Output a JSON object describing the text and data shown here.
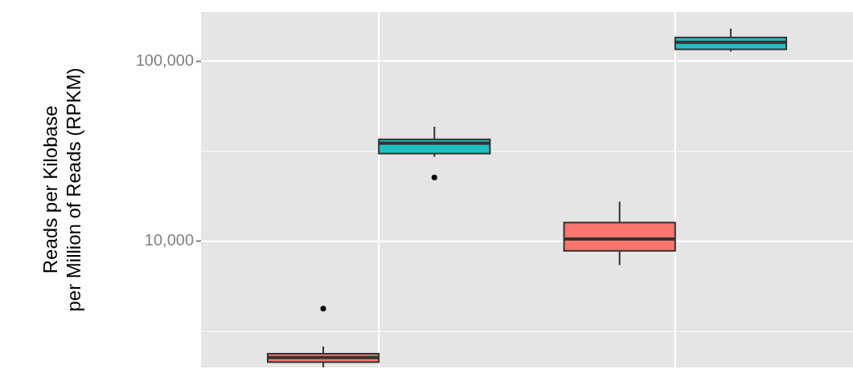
{
  "chart_data": {
    "type": "box",
    "ylabel": "Reads per Kilobase\nper Million of Reads (RPKM)",
    "categories": [
      null,
      null
    ],
    "log": "y",
    "grid": true,
    "legend": false,
    "tick_labels": "y",
    "ylim": [
      2000,
      187000
    ],
    "yticks": [
      {
        "value": 3162,
        "label": null
      },
      {
        "value": 10000,
        "label": "10,000"
      },
      {
        "value": 31623,
        "label": null
      },
      {
        "value": 100000,
        "label": "100,000"
      }
    ],
    "series": [
      {
        "color": "#f8766d",
        "boxes": [
          {
            "low": 2000,
            "q1": 2135,
            "median": 2265,
            "q3": 2380,
            "high": 2610,
            "outliers": [
              4240
            ]
          },
          {
            "low": 7380,
            "q1": 8860,
            "median": 10300,
            "q3": 12700,
            "high": 16600
          }
        ]
      },
      {
        "color": "#1fbfc4",
        "boxes": [
          {
            "low": 29400,
            "q1": 30700,
            "median": 35000,
            "q3": 36800,
            "high": 43200,
            "outliers": [
              22600
            ]
          },
          {
            "low": 113000,
            "q1": 116000,
            "median": 127000,
            "q3": 135000,
            "high": 151000
          }
        ]
      }
    ]
  }
}
